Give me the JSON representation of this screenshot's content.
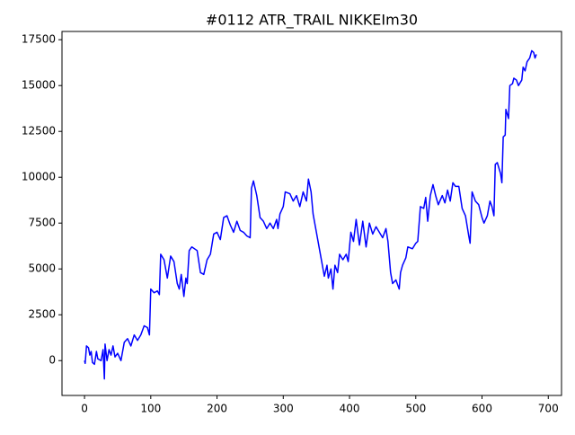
{
  "chart_data": {
    "type": "line",
    "title": "#0112 ATR_TRAIL NIKKEIm30",
    "series": [
      {
        "color": "#0000ff",
        "x": [
          0,
          1,
          3,
          6,
          8,
          10,
          12,
          15,
          18,
          20,
          25,
          28,
          30,
          31,
          34,
          37,
          40,
          43,
          46,
          50,
          55,
          60,
          65,
          70,
          75,
          80,
          85,
          90,
          95,
          98,
          100,
          105,
          110,
          113,
          115,
          120,
          125,
          130,
          135,
          140,
          143,
          146,
          150,
          153,
          155,
          158,
          162,
          170,
          175,
          180,
          185,
          190,
          195,
          200,
          205,
          210,
          215,
          220,
          225,
          230,
          235,
          240,
          245,
          250,
          252,
          255,
          260,
          265,
          270,
          275,
          280,
          285,
          290,
          292,
          295,
          300,
          303,
          310,
          315,
          320,
          325,
          330,
          335,
          338,
          342,
          345,
          350,
          355,
          360,
          362,
          366,
          368,
          372,
          375,
          378,
          382,
          385,
          390,
          395,
          398,
          402,
          406,
          410,
          415,
          420,
          425,
          430,
          435,
          440,
          445,
          450,
          455,
          458,
          462,
          465,
          470,
          475,
          477,
          480,
          485,
          488,
          495,
          500,
          503,
          507,
          512,
          515,
          518,
          522,
          526,
          530,
          534,
          540,
          544,
          548,
          552,
          556,
          560,
          565,
          570,
          575,
          580,
          582,
          585,
          590,
          595,
          600,
          603,
          608,
          612,
          615,
          618,
          620,
          623,
          628,
          630,
          632,
          635,
          636,
          640,
          642,
          646,
          648,
          652,
          655,
          660,
          662,
          665,
          668,
          672,
          675,
          678,
          680,
          682
        ],
        "values": [
          0,
          -150,
          800,
          700,
          300,
          500,
          -100,
          -200,
          500,
          100,
          0,
          600,
          -1000,
          900,
          0,
          600,
          300,
          800,
          200,
          400,
          0,
          1000,
          1200,
          800,
          1400,
          1100,
          1400,
          1900,
          1800,
          1400,
          3900,
          3700,
          3800,
          3600,
          5800,
          5500,
          4500,
          5700,
          5400,
          4200,
          3900,
          4700,
          3500,
          4500,
          4200,
          6000,
          6200,
          6000,
          4800,
          4700,
          5500,
          5800,
          6900,
          7000,
          6600,
          7800,
          7900,
          7400,
          7000,
          7600,
          7100,
          7000,
          6800,
          6700,
          9400,
          9800,
          9000,
          7800,
          7600,
          7200,
          7500,
          7200,
          7700,
          7200,
          8000,
          8400,
          9200,
          9100,
          8700,
          9000,
          8400,
          9200,
          8700,
          9900,
          9200,
          8000,
          7000,
          6000,
          5000,
          4600,
          5200,
          4500,
          5000,
          3900,
          5200,
          4800,
          5800,
          5500,
          5800,
          5400,
          7000,
          6500,
          7700,
          6300,
          7600,
          6200,
          7500,
          6900,
          7300,
          7000,
          6700,
          7200,
          6500,
          4800,
          4200,
          4400,
          3900,
          4800,
          5200,
          5600,
          6200,
          6100,
          6400,
          6500,
          8400,
          8300,
          8900,
          7600,
          9000,
          9600,
          9000,
          8500,
          9000,
          8600,
          9300,
          8700,
          9700,
          9500,
          9500,
          8300,
          7900,
          6800,
          6400,
          9200,
          8700,
          8500,
          7800,
          7500,
          7900,
          8700,
          8400,
          7900,
          10700,
          10800,
          10200,
          9700,
          12200,
          12300,
          13700,
          13200,
          15000,
          15100,
          15400,
          15300,
          15000,
          15300,
          16000,
          15800,
          16300,
          16500,
          16900,
          16800,
          16500,
          16700
        ]
      }
    ],
    "xlim": [
      -34,
      720
    ],
    "ylim": [
      -1900,
      17950
    ],
    "xticks": [
      0,
      100,
      200,
      300,
      400,
      500,
      600,
      700
    ],
    "yticks": [
      0,
      2500,
      5000,
      7500,
      10000,
      12500,
      15000,
      17500
    ]
  }
}
